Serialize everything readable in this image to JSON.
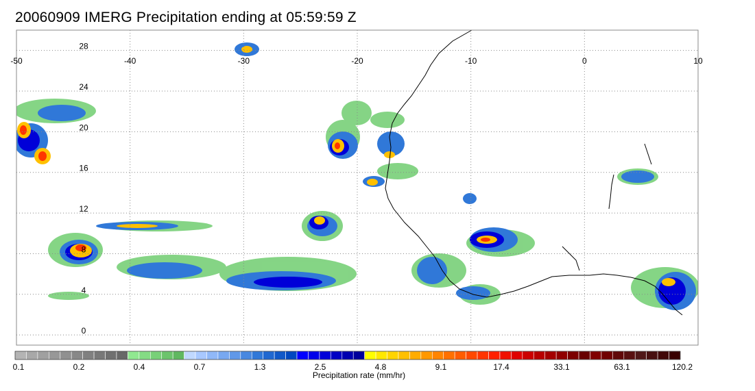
{
  "title": "20060909 IMERG Precipitation ending at 05:59:59 Z",
  "map": {
    "lon_range": [
      -50,
      10
    ],
    "lat_range": [
      -1,
      30
    ],
    "lon_ticks": [
      -50,
      -40,
      -30,
      -20,
      -10,
      0,
      10
    ],
    "lon_tick_labels": [
      "-50",
      "-40",
      "-30",
      "-20",
      "-10",
      "0",
      "10"
    ],
    "lat_ticks": [
      28,
      24,
      20,
      16,
      12,
      8,
      4,
      0
    ],
    "lat_tick_labels": [
      "28",
      "24",
      "20",
      "16",
      "12",
      "8",
      "4",
      "0"
    ],
    "grid": true,
    "grid_style": "dotted"
  },
  "colorbar": {
    "label": "Precipitation rate (mm/hr)",
    "tick_labels": [
      "0.1",
      "0.2",
      "0.4",
      "0.7",
      "1.3",
      "2.5",
      "4.8",
      "9.1",
      "17.4",
      "33.1",
      "63.1",
      "120.2"
    ],
    "colors": [
      "#b4b4b4",
      "#a8a8a8",
      "#a0a0a0",
      "#989898",
      "#909090",
      "#888888",
      "#808080",
      "#787878",
      "#707070",
      "#686868",
      "#90e890",
      "#84dc84",
      "#78d078",
      "#6cc46c",
      "#60b860",
      "#c0d8ff",
      "#a8c8ff",
      "#90b8f8",
      "#78a8f0",
      "#6098e8",
      "#4888e0",
      "#3078d8",
      "#2068d0",
      "#1058c8",
      "#0048c0",
      "#0000ff",
      "#0000ea",
      "#0000d8",
      "#0000c4",
      "#0000b0",
      "#00009c",
      "#ffff00",
      "#ffe800",
      "#ffd400",
      "#ffc000",
      "#ffac00",
      "#ff9800",
      "#ff8400",
      "#ff7000",
      "#ff5c00",
      "#ff4800",
      "#ff3400",
      "#ff2000",
      "#f01000",
      "#e00000",
      "#cc0000",
      "#b80000",
      "#a40000",
      "#900000",
      "#7c0000",
      "#680000",
      "#800000",
      "#700000",
      "#600808",
      "#581010",
      "#501818",
      "#481010",
      "#400808",
      "#380000"
    ]
  },
  "colors": {
    "coastline": "#000000",
    "grid": "#888888",
    "frame": "#888888"
  }
}
